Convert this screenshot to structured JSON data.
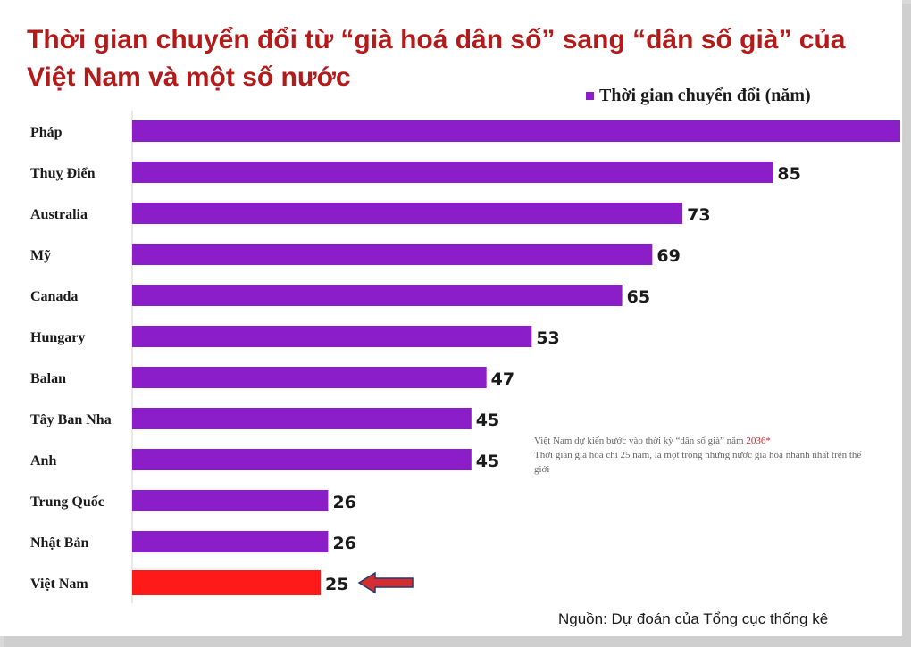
{
  "chart_data": {
    "type": "bar",
    "orientation": "horizontal",
    "title": "Thời gian chuyển đổi từ “già hoá dân số” sang “dân số già” của Việt Nam và một số nước",
    "legend": "Thời gian chuyển đổi (năm)",
    "legend_position": "top-right",
    "categories": [
      "Pháp",
      "Thuỵ Điển",
      "Australia",
      "Mỹ",
      "Canada",
      "Hungary",
      "Balan",
      "Tây Ban Nha",
      "Anh",
      "Trung Quốc",
      "Nhật Bản",
      "Việt Nam"
    ],
    "values": [
      115,
      85,
      73,
      69,
      65,
      53,
      47,
      45,
      45,
      26,
      26,
      25
    ],
    "labels": [
      "",
      "85",
      "73",
      "69",
      "65",
      "53",
      "47",
      "45",
      "45",
      "26",
      "26",
      "25"
    ],
    "highlight_index": 11,
    "grid": false
  },
  "colors": {
    "bar": "#8b1ec8",
    "highlight_bar": "#ff1a1a",
    "title": "#b31b1b",
    "arrow": "#d32f2f"
  },
  "annotation": {
    "line1_prefix": "Việt Nam dự kiến bước vào thời kỳ “dân số già” năm ",
    "line1_year": "2036*",
    "line2": "Thời gian già hóa chỉ 25 năm, là một trong những nước già hóa nhanh nhất trên thế giới"
  },
  "source": "Nguồn: Dự đoán của Tổng cục thống kê",
  "icons": {
    "arrow": "left-arrow-icon"
  }
}
